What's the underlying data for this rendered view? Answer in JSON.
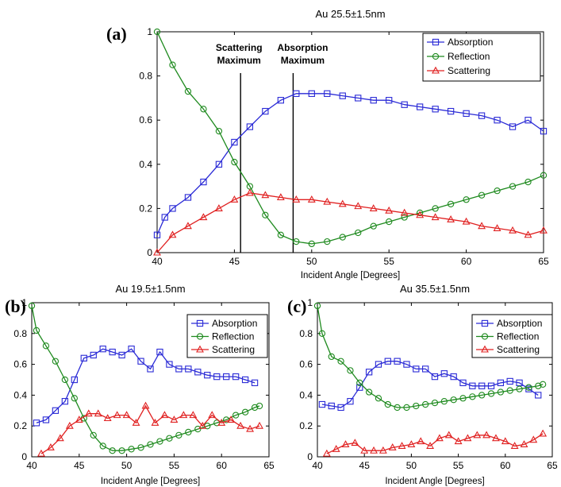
{
  "colors": {
    "Absorption": "#2a2ad6",
    "Reflection": "#1e8a1e",
    "Scattering": "#e02020"
  },
  "chart_data": [
    {
      "id": "a",
      "type": "line",
      "panel_label": "(a)",
      "title": "Au  25.5±1.5nm",
      "xlabel": "Incident Angle [Degrees]",
      "ylabel": "",
      "xlim": [
        40,
        65
      ],
      "ylim": [
        0,
        1
      ],
      "xticks": [
        40,
        45,
        50,
        55,
        60,
        65
      ],
      "yticks": [
        0,
        0.2,
        0.4,
        0.6,
        0.8,
        1
      ],
      "ytick_labels": [
        "0",
        "0.2",
        "0.4",
        "0.6",
        "0.8",
        "1"
      ],
      "legend": "top-right",
      "annotations": [
        {
          "lines": [
            "Scattering",
            "Maximum"
          ],
          "x": 45.4
        },
        {
          "lines": [
            "Absorption",
            "Maximum"
          ],
          "x": 48.8
        }
      ],
      "series": [
        {
          "name": "Absorption",
          "marker": "square",
          "x": [
            40,
            40.5,
            41,
            42,
            43,
            44,
            45,
            46,
            47,
            48,
            49,
            50,
            51,
            52,
            53,
            54,
            55,
            56,
            57,
            58,
            59,
            60,
            61,
            62,
            63,
            64,
            65
          ],
          "y": [
            0.08,
            0.16,
            0.2,
            0.25,
            0.32,
            0.4,
            0.5,
            0.57,
            0.64,
            0.69,
            0.72,
            0.72,
            0.72,
            0.71,
            0.7,
            0.69,
            0.69,
            0.67,
            0.66,
            0.65,
            0.64,
            0.63,
            0.62,
            0.6,
            0.57,
            0.6,
            0.55
          ]
        },
        {
          "name": "Reflection",
          "marker": "circle",
          "x": [
            40,
            41,
            42,
            43,
            44,
            45,
            46,
            47,
            48,
            49,
            50,
            51,
            52,
            53,
            54,
            55,
            56,
            57,
            58,
            59,
            60,
            61,
            62,
            63,
            64,
            65
          ],
          "y": [
            1.0,
            0.85,
            0.73,
            0.65,
            0.55,
            0.41,
            0.3,
            0.17,
            0.08,
            0.05,
            0.04,
            0.05,
            0.07,
            0.09,
            0.12,
            0.14,
            0.16,
            0.18,
            0.2,
            0.22,
            0.24,
            0.26,
            0.28,
            0.3,
            0.32,
            0.35
          ]
        },
        {
          "name": "Scattering",
          "marker": "triangle",
          "x": [
            40,
            41,
            42,
            43,
            44,
            45,
            46,
            47,
            48,
            49,
            50,
            51,
            52,
            53,
            54,
            55,
            56,
            57,
            58,
            59,
            60,
            61,
            62,
            63,
            64,
            65
          ],
          "y": [
            0.0,
            0.08,
            0.12,
            0.16,
            0.2,
            0.24,
            0.27,
            0.26,
            0.25,
            0.24,
            0.24,
            0.23,
            0.22,
            0.21,
            0.2,
            0.19,
            0.18,
            0.17,
            0.16,
            0.15,
            0.14,
            0.12,
            0.11,
            0.1,
            0.08,
            0.1
          ]
        }
      ]
    },
    {
      "id": "b",
      "type": "line",
      "panel_label": "(b)",
      "title": "Au  19.5±1.5nm",
      "xlabel": "Incident Angle [Degrees]",
      "ylabel": "",
      "xlim": [
        40,
        65
      ],
      "ylim": [
        0,
        1
      ],
      "xticks": [
        40,
        45,
        50,
        55,
        60,
        65
      ],
      "yticks": [
        0,
        0.2,
        0.4,
        0.6,
        0.8,
        1
      ],
      "ytick_labels": [
        "0",
        "0.2",
        "0.4",
        "0.6",
        "0.8",
        "1"
      ],
      "legend": "top-right",
      "series": [
        {
          "name": "Absorption",
          "marker": "square",
          "x": [
            40.5,
            41.5,
            42.5,
            43.5,
            44.5,
            45.5,
            46.5,
            47.5,
            48.5,
            49.5,
            50.5,
            51.5,
            52.5,
            53.5,
            54.5,
            55.5,
            56.5,
            57.5,
            58.5,
            59.5,
            60.5,
            61.5,
            62.5,
            63.5
          ],
          "y": [
            0.22,
            0.24,
            0.3,
            0.36,
            0.5,
            0.64,
            0.66,
            0.7,
            0.68,
            0.66,
            0.7,
            0.62,
            0.57,
            0.68,
            0.6,
            0.57,
            0.57,
            0.55,
            0.53,
            0.52,
            0.52,
            0.52,
            0.5,
            0.48
          ]
        },
        {
          "name": "Reflection",
          "marker": "circle",
          "x": [
            40,
            40.5,
            41.5,
            42.5,
            43.5,
            44.5,
            45.5,
            46.5,
            47.5,
            48.5,
            49.5,
            50.5,
            51.5,
            52.5,
            53.5,
            54.5,
            55.5,
            56.5,
            57.5,
            58.5,
            59.5,
            60.5,
            61.5,
            62.5,
            63.5,
            64
          ],
          "y": [
            0.98,
            0.82,
            0.72,
            0.62,
            0.5,
            0.38,
            0.25,
            0.14,
            0.07,
            0.04,
            0.04,
            0.05,
            0.06,
            0.08,
            0.1,
            0.12,
            0.14,
            0.16,
            0.18,
            0.2,
            0.22,
            0.24,
            0.27,
            0.29,
            0.32,
            0.33
          ]
        },
        {
          "name": "Scattering",
          "marker": "triangle",
          "x": [
            41,
            42,
            43,
            44,
            45,
            46,
            47,
            48,
            49,
            50,
            51,
            52,
            53,
            54,
            55,
            56,
            57,
            58,
            59,
            60,
            61,
            62,
            63,
            64
          ],
          "y": [
            0.02,
            0.06,
            0.12,
            0.2,
            0.24,
            0.28,
            0.28,
            0.25,
            0.27,
            0.27,
            0.22,
            0.33,
            0.22,
            0.27,
            0.24,
            0.27,
            0.27,
            0.2,
            0.27,
            0.22,
            0.24,
            0.2,
            0.18,
            0.2
          ]
        }
      ]
    },
    {
      "id": "c",
      "type": "line",
      "panel_label": "(c)",
      "title": "Au  35.5±1.5nm",
      "xlabel": "Incident Angle [Degrees]",
      "ylabel": "",
      "xlim": [
        40,
        65
      ],
      "ylim": [
        0,
        1
      ],
      "xticks": [
        40,
        45,
        50,
        55,
        60,
        65
      ],
      "yticks": [
        0,
        0.2,
        0.4,
        0.6,
        0.8,
        1
      ],
      "ytick_labels": [
        "0",
        "0.2",
        "0.4",
        "0.6",
        "0.8",
        "1"
      ],
      "legend": "top-right",
      "series": [
        {
          "name": "Absorption",
          "marker": "square",
          "x": [
            40.5,
            41.5,
            42.5,
            43.5,
            44.5,
            45.5,
            46.5,
            47.5,
            48.5,
            49.5,
            50.5,
            51.5,
            52.5,
            53.5,
            54.5,
            55.5,
            56.5,
            57.5,
            58.5,
            59.5,
            60.5,
            61.5,
            62.5,
            63.5
          ],
          "y": [
            0.34,
            0.33,
            0.32,
            0.36,
            0.45,
            0.55,
            0.6,
            0.62,
            0.62,
            0.6,
            0.57,
            0.57,
            0.52,
            0.54,
            0.52,
            0.48,
            0.46,
            0.46,
            0.46,
            0.48,
            0.49,
            0.48,
            0.44,
            0.4
          ]
        },
        {
          "name": "Reflection",
          "marker": "circle",
          "x": [
            40,
            40.5,
            41.5,
            42.5,
            43.5,
            44.5,
            45.5,
            46.5,
            47.5,
            48.5,
            49.5,
            50.5,
            51.5,
            52.5,
            53.5,
            54.5,
            55.5,
            56.5,
            57.5,
            58.5,
            59.5,
            60.5,
            61.5,
            62.5,
            63.5,
            64
          ],
          "y": [
            0.98,
            0.8,
            0.65,
            0.62,
            0.56,
            0.48,
            0.42,
            0.38,
            0.34,
            0.32,
            0.32,
            0.33,
            0.34,
            0.35,
            0.36,
            0.37,
            0.38,
            0.39,
            0.4,
            0.41,
            0.42,
            0.43,
            0.44,
            0.45,
            0.46,
            0.47
          ]
        },
        {
          "name": "Scattering",
          "marker": "triangle",
          "x": [
            41,
            42,
            43,
            44,
            45,
            46,
            47,
            48,
            49,
            50,
            51,
            52,
            53,
            54,
            55,
            56,
            57,
            58,
            59,
            60,
            61,
            62,
            63,
            64
          ],
          "y": [
            0.02,
            0.05,
            0.08,
            0.09,
            0.04,
            0.04,
            0.04,
            0.06,
            0.07,
            0.08,
            0.1,
            0.07,
            0.12,
            0.14,
            0.1,
            0.12,
            0.14,
            0.14,
            0.12,
            0.1,
            0.07,
            0.08,
            0.11,
            0.15
          ]
        }
      ]
    }
  ]
}
